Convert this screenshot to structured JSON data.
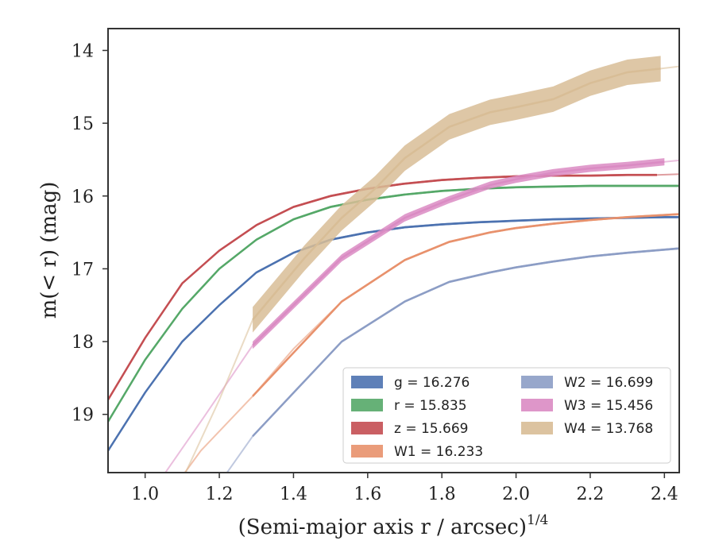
{
  "chart_data": {
    "type": "line",
    "xlabel": "(Semi-major axis r / arcsec)",
    "xlabel_superscript": "1/4",
    "ylabel": "m(< r) (mag)",
    "xlim": [
      0.9,
      2.44
    ],
    "ylim": [
      19.8,
      13.7
    ],
    "y_inverted": true,
    "x_ticks": [
      "1.0",
      "1.2",
      "1.4",
      "1.6",
      "1.8",
      "2.0",
      "2.2",
      "2.4"
    ],
    "y_ticks": [
      "14",
      "15",
      "16",
      "17",
      "18",
      "19"
    ],
    "grid": false,
    "legend_position": "lower-right",
    "series": [
      {
        "name": "g = 16.276",
        "color": "#4c72b0",
        "band": 0.03,
        "x": [
          0.9,
          1.0,
          1.1,
          1.2,
          1.3,
          1.4,
          1.5,
          1.6,
          1.7,
          1.8,
          1.9,
          2.0,
          2.1,
          2.2,
          2.3,
          2.4,
          2.44
        ],
        "y": [
          19.5,
          18.7,
          18.0,
          17.5,
          17.05,
          16.78,
          16.6,
          16.5,
          16.43,
          16.39,
          16.36,
          16.34,
          16.32,
          16.31,
          16.3,
          16.29,
          16.29
        ],
        "thin_x": [
          2.3,
          2.44
        ],
        "thin_y": [
          16.3,
          16.29
        ]
      },
      {
        "name": "r = 15.835",
        "color": "#55a868",
        "band": 0.03,
        "x": [
          0.9,
          1.0,
          1.1,
          1.2,
          1.3,
          1.4,
          1.5,
          1.6,
          1.7,
          1.8,
          1.9,
          2.0,
          2.1,
          2.2,
          2.3,
          2.4,
          2.44
        ],
        "y": [
          19.1,
          18.25,
          17.55,
          17.0,
          16.6,
          16.32,
          16.15,
          16.05,
          15.98,
          15.93,
          15.9,
          15.88,
          15.87,
          15.86,
          15.86,
          15.86,
          15.86
        ],
        "thin_x": [
          2.3,
          2.44
        ],
        "thin_y": [
          15.86,
          15.86
        ]
      },
      {
        "name": "z = 15.669",
        "color": "#c44e52",
        "band": 0.03,
        "x": [
          0.9,
          1.0,
          1.1,
          1.2,
          1.3,
          1.4,
          1.5,
          1.6,
          1.7,
          1.8,
          1.9,
          2.0,
          2.1,
          2.2,
          2.3,
          2.38
        ],
        "y": [
          18.8,
          17.95,
          17.2,
          16.75,
          16.4,
          16.15,
          16.0,
          15.9,
          15.83,
          15.78,
          15.75,
          15.73,
          15.72,
          15.72,
          15.71,
          15.71
        ],
        "thin_x": [
          2.38,
          2.44
        ],
        "thin_y": [
          15.71,
          15.7
        ]
      },
      {
        "name": "W1 = 16.233",
        "color": "#e8916c",
        "band": 0.03,
        "x": [
          1.29,
          1.53,
          1.7,
          1.82,
          1.93,
          2.0,
          2.1,
          2.2,
          2.3,
          2.44
        ],
        "y": [
          18.75,
          17.45,
          16.88,
          16.63,
          16.5,
          16.44,
          16.38,
          16.33,
          16.29,
          16.25
        ],
        "thin_x": [
          1.05,
          1.15,
          1.29,
          1.4,
          1.53
        ],
        "thin_y": [
          20.2,
          19.5,
          18.75,
          18.1,
          17.45
        ]
      },
      {
        "name": "W2 = 16.699",
        "color": "#8c9dc5",
        "band": 0.03,
        "x": [
          1.29,
          1.53,
          1.7,
          1.82,
          1.93,
          2.0,
          2.1,
          2.2,
          2.3,
          2.44
        ],
        "y": [
          19.3,
          18.0,
          17.45,
          17.18,
          17.05,
          16.98,
          16.9,
          16.83,
          16.78,
          16.72
        ],
        "thin_x": [
          1.2,
          1.29,
          1.4,
          1.53
        ],
        "thin_y": [
          19.95,
          19.3,
          18.7,
          18.0
        ]
      },
      {
        "name": "W3 = 15.456",
        "color": "#da8bc3",
        "band": 0.1,
        "x": [
          1.29,
          1.53,
          1.7,
          1.82,
          1.93,
          2.0,
          2.1,
          2.2,
          2.3,
          2.4
        ],
        "y": [
          18.05,
          16.85,
          16.3,
          16.05,
          15.85,
          15.77,
          15.68,
          15.62,
          15.58,
          15.53
        ],
        "thin_x": [
          1.0,
          1.15,
          1.29
        ],
        "thin_y": [
          20.2,
          19.1,
          18.05
        ],
        "thin_x2": [
          2.4,
          2.44
        ],
        "thin_y2": [
          15.53,
          15.51
        ]
      },
      {
        "name": "W4 = 13.768",
        "color": "#d8bd96",
        "band": 0.35,
        "x": [
          1.29,
          1.43,
          1.53,
          1.62,
          1.7,
          1.82,
          1.93,
          2.0,
          2.1,
          2.2,
          2.3,
          2.39
        ],
        "y": [
          17.7,
          16.85,
          16.3,
          15.9,
          15.48,
          15.05,
          14.85,
          14.78,
          14.67,
          14.45,
          14.3,
          14.25
        ],
        "thin_x": [
          1.1,
          1.2,
          1.29
        ],
        "thin_y": [
          19.9,
          18.8,
          17.7
        ],
        "thin_x2": [
          2.39,
          2.44
        ],
        "thin_y2": [
          14.25,
          14.22
        ]
      }
    ],
    "legend_columns": [
      [
        "g = 16.276",
        "r = 15.835",
        "z = 15.669",
        "W1 = 16.233"
      ],
      [
        "W2 = 16.699",
        "W3 = 15.456",
        "W4 = 13.768"
      ]
    ]
  }
}
